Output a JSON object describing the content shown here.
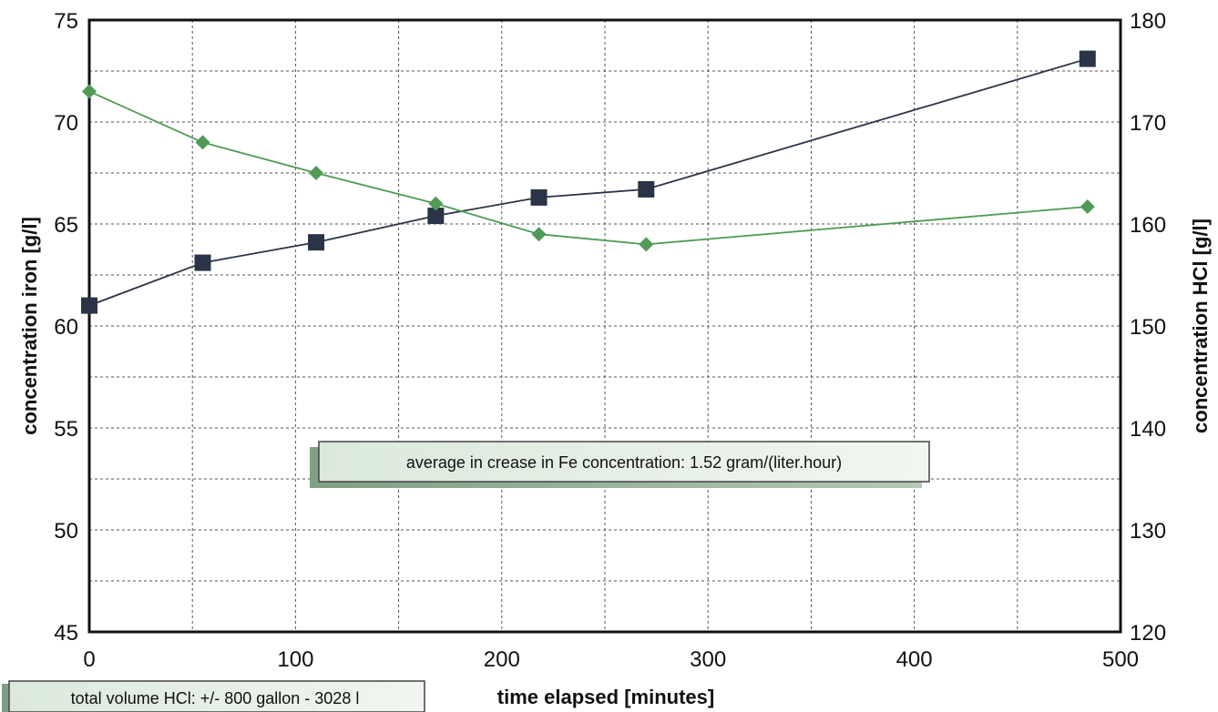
{
  "chart_data": {
    "type": "line",
    "xlabel": "time elapsed   [minutes]",
    "ylabel_left": "concentration iron   [g/l]",
    "ylabel_right": "concentration HCl   [g/l]",
    "xlim": [
      0,
      500
    ],
    "ylim_left": [
      45,
      75
    ],
    "ylim_right": [
      120,
      180
    ],
    "x_ticks": [
      0,
      100,
      200,
      300,
      400,
      500
    ],
    "y_ticks_left": [
      45,
      50,
      55,
      60,
      65,
      70,
      75
    ],
    "y_ticks_right": [
      120,
      130,
      140,
      150,
      160,
      170,
      180
    ],
    "grid": true,
    "series": [
      {
        "axis": "left",
        "marker": "square",
        "color": "#2b3446",
        "x": [
          0,
          55,
          110,
          168,
          218,
          270,
          484
        ],
        "y": [
          61.0,
          63.1,
          64.1,
          65.4,
          66.3,
          66.7,
          73.1
        ]
      },
      {
        "axis": "right",
        "marker": "diamond",
        "color": "#4f9a57",
        "x": [
          0,
          55,
          110,
          168,
          218,
          270,
          484
        ],
        "y": [
          173.0,
          168.0,
          165.0,
          162.0,
          159.0,
          158.0,
          161.7
        ]
      }
    ],
    "annotations": [
      {
        "text": "average in crease in Fe concentration: 1.52 gram/(liter.hour)"
      },
      {
        "text": "total volume HCl: +/- 800 gallon - 3028 l"
      }
    ]
  }
}
